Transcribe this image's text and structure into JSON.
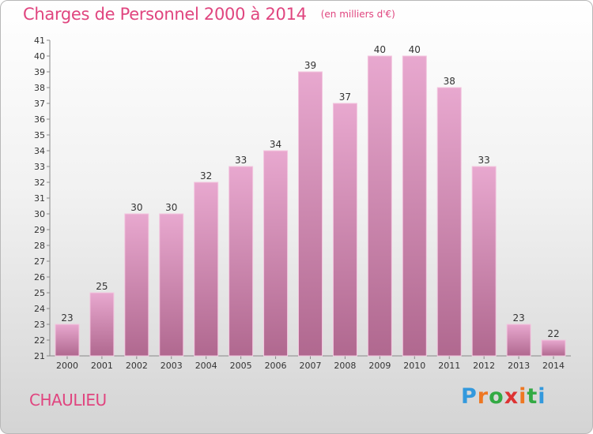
{
  "header": {
    "title": "Charges de Personnel 2000 à 2014",
    "unit": "(en milliers d'€)"
  },
  "footer": {
    "commune": "CHAULIEU",
    "logo": "Proxiti"
  },
  "colors": {
    "bar_top": "#e8a8cf",
    "bar_bottom": "#b0688f",
    "bar_stroke": "#f3c6df",
    "title": "#e0457f"
  },
  "chart_data": {
    "type": "bar",
    "title": "Charges de Personnel 2000 à 2014",
    "subtitle": "(en milliers d'€)",
    "xlabel": "",
    "ylabel": "",
    "categories": [
      "2000",
      "2001",
      "2002",
      "2003",
      "2004",
      "2005",
      "2006",
      "2007",
      "2008",
      "2009",
      "2010",
      "2011",
      "2012",
      "2013",
      "2014"
    ],
    "values": [
      23,
      25,
      30,
      30,
      32,
      33,
      34,
      39,
      37,
      40,
      40,
      38,
      33,
      23,
      22
    ],
    "ylim": [
      21,
      41
    ],
    "yticks": [
      21,
      22,
      23,
      24,
      25,
      26,
      27,
      28,
      29,
      30,
      31,
      32,
      33,
      34,
      35,
      36,
      37,
      38,
      39,
      40,
      41
    ],
    "grid": false,
    "data_labels": true
  }
}
